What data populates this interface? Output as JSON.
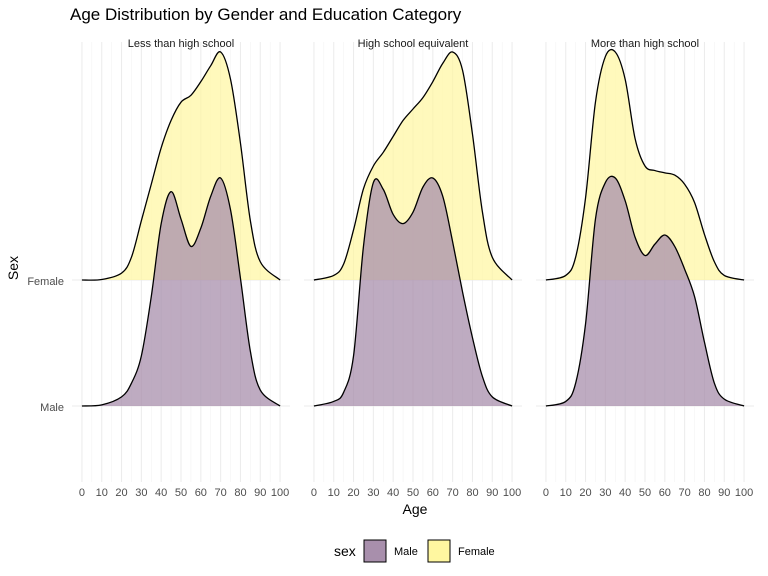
{
  "chart_data": {
    "type": "ridgeline-density",
    "title": "Age Distribution by Gender and Education Category",
    "xlabel": "Age",
    "ylabel": "Sex",
    "x_ticks": [
      0,
      10,
      20,
      30,
      40,
      50,
      60,
      70,
      80,
      90,
      100
    ],
    "xlim": [
      -5,
      105
    ],
    "categories": [
      "Female",
      "Male"
    ],
    "legend": {
      "title": "sex",
      "position": "bottom",
      "entries": [
        {
          "label": "Male",
          "color": "#a88fac"
        },
        {
          "label": "Female",
          "color": "#fff7a0"
        }
      ]
    },
    "colors": {
      "Male": "#a88fac",
      "Female": "#fff7a0",
      "outline": "#000000"
    },
    "grid": true,
    "panels": [
      {
        "label": "Less than high school",
        "series": [
          {
            "name": "Female",
            "x": [
              0,
              10,
              20,
              25,
              30,
              35,
              40,
              45,
              50,
              55,
              60,
              65,
              70,
              75,
              80,
              85,
              90,
              100
            ],
            "y": [
              0,
              0.002,
              0.03,
              0.1,
              0.26,
              0.42,
              0.58,
              0.7,
              0.78,
              0.81,
              0.87,
              0.94,
              1.0,
              0.88,
              0.6,
              0.26,
              0.08,
              0
            ]
          },
          {
            "name": "Male",
            "x": [
              0,
              10,
              20,
              25,
              30,
              35,
              40,
              45,
              50,
              55,
              60,
              65,
              70,
              75,
              80,
              85,
              90,
              100
            ],
            "y": [
              0,
              0.005,
              0.04,
              0.1,
              0.22,
              0.48,
              0.8,
              0.94,
              0.82,
              0.7,
              0.78,
              0.92,
              1.0,
              0.86,
              0.56,
              0.24,
              0.07,
              0
            ]
          }
        ]
      },
      {
        "label": "High school equivalent",
        "series": [
          {
            "name": "Female",
            "x": [
              0,
              10,
              15,
              20,
              25,
              30,
              35,
              40,
              45,
              50,
              55,
              60,
              65,
              70,
              75,
              80,
              85,
              90,
              100
            ],
            "y": [
              0,
              0.02,
              0.07,
              0.22,
              0.4,
              0.5,
              0.56,
              0.63,
              0.7,
              0.75,
              0.8,
              0.87,
              0.95,
              1.0,
              0.92,
              0.64,
              0.3,
              0.1,
              0
            ]
          },
          {
            "name": "Male",
            "x": [
              0,
              10,
              15,
              20,
              25,
              30,
              35,
              40,
              45,
              50,
              55,
              60,
              65,
              70,
              75,
              80,
              85,
              90,
              100
            ],
            "y": [
              0,
              0.02,
              0.06,
              0.22,
              0.7,
              0.98,
              0.95,
              0.84,
              0.8,
              0.85,
              0.96,
              1.0,
              0.92,
              0.72,
              0.5,
              0.3,
              0.13,
              0.04,
              0
            ]
          }
        ]
      },
      {
        "label": "More than high school",
        "series": [
          {
            "name": "Female",
            "x": [
              0,
              10,
              15,
              20,
              25,
              30,
              35,
              40,
              45,
              50,
              55,
              60,
              65,
              70,
              75,
              80,
              85,
              90,
              100
            ],
            "y": [
              0,
              0.02,
              0.1,
              0.36,
              0.78,
              0.98,
              1.0,
              0.88,
              0.62,
              0.5,
              0.48,
              0.47,
              0.46,
              0.42,
              0.34,
              0.2,
              0.08,
              0.02,
              0
            ]
          },
          {
            "name": "Male",
            "x": [
              0,
              10,
              15,
              20,
              25,
              30,
              35,
              40,
              45,
              50,
              55,
              60,
              65,
              70,
              75,
              80,
              85,
              90,
              100
            ],
            "y": [
              0,
              0.02,
              0.1,
              0.36,
              0.82,
              0.98,
              1.0,
              0.9,
              0.74,
              0.66,
              0.71,
              0.75,
              0.7,
              0.6,
              0.48,
              0.28,
              0.1,
              0.03,
              0
            ]
          }
        ]
      }
    ]
  }
}
